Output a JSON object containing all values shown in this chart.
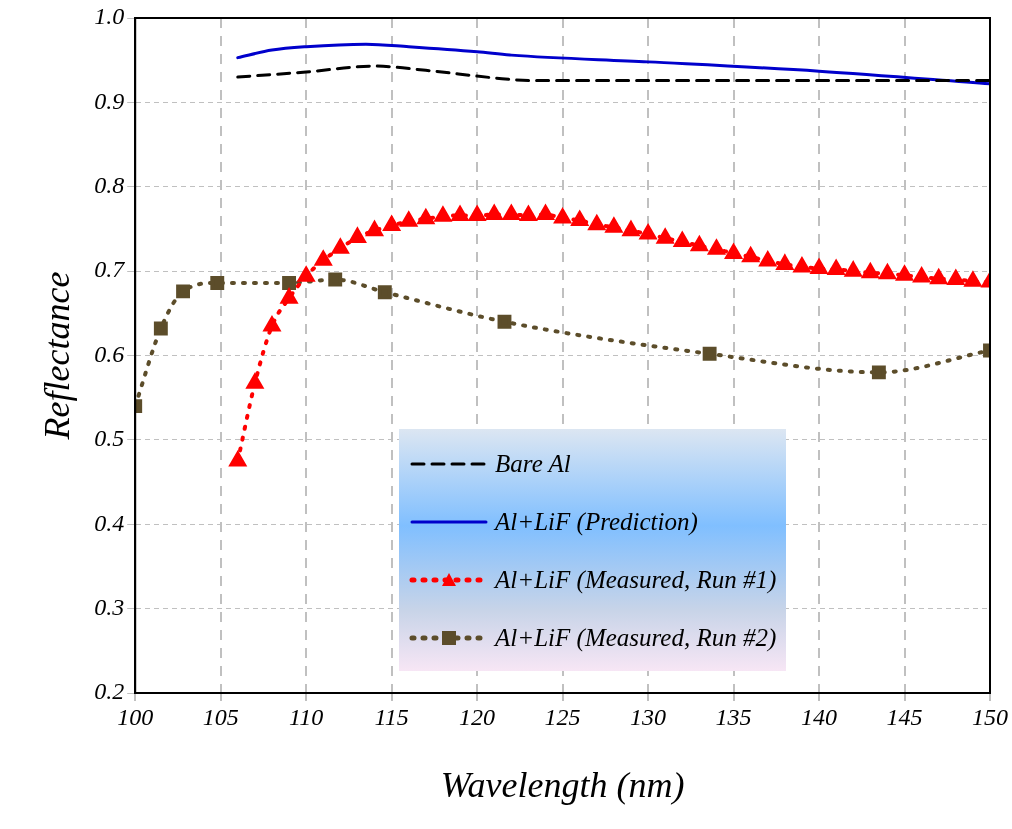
{
  "chart_data": {
    "type": "line",
    "xlabel": "Wavelength (nm)",
    "ylabel": "Reflectance",
    "xlim": [
      100,
      150
    ],
    "xticks": [
      100,
      105,
      110,
      115,
      120,
      125,
      130,
      135,
      140,
      145,
      150
    ],
    "ylim": [
      0.2,
      1.0
    ],
    "yticks": [
      0.2,
      0.3,
      0.4,
      0.5,
      0.6,
      0.7,
      0.8,
      0.9,
      {
        "value": 1.0,
        "label": "1.0"
      }
    ],
    "grid": true,
    "legend": "bottom",
    "series": [
      {
        "name": "Bare Al",
        "color": "#000000",
        "line_style": "dashed",
        "marker": "none",
        "x": [
          106,
          110,
          114,
          117,
          121,
          123,
          130,
          140,
          150
        ],
        "values": [
          0.93,
          0.936,
          0.943,
          0.938,
          0.929,
          0.926,
          0.926,
          0.926,
          0.926
        ]
      },
      {
        "name": "Al+LiF (Prediction)",
        "color": "#0000cc",
        "line_style": "solid",
        "marker": "none",
        "x": [
          106,
          108,
          110,
          113.5,
          116,
          120,
          122,
          130,
          140,
          150
        ],
        "values": [
          0.953,
          0.962,
          0.966,
          0.969,
          0.966,
          0.96,
          0.956,
          0.948,
          0.937,
          0.922
        ]
      },
      {
        "name": "Al+LiF (Measured, Run #1)",
        "color": "#ff0000",
        "line_style": "dotted",
        "marker": "triangle",
        "x": [
          106,
          107,
          108,
          109,
          110,
          111,
          112,
          113,
          114,
          115,
          116,
          117,
          118,
          119,
          120,
          121,
          122,
          123,
          124,
          125,
          126,
          127,
          128,
          129,
          130,
          131,
          132,
          133,
          134,
          135,
          136,
          137,
          138,
          139,
          140,
          141,
          142,
          143,
          144,
          145,
          146,
          147,
          148,
          149,
          150
        ],
        "values": [
          0.475,
          0.567,
          0.635,
          0.668,
          0.694,
          0.713,
          0.727,
          0.74,
          0.748,
          0.754,
          0.759,
          0.762,
          0.765,
          0.766,
          0.766,
          0.767,
          0.767,
          0.766,
          0.767,
          0.763,
          0.76,
          0.755,
          0.752,
          0.748,
          0.744,
          0.739,
          0.735,
          0.73,
          0.726,
          0.721,
          0.717,
          0.712,
          0.708,
          0.705,
          0.703,
          0.702,
          0.7,
          0.698,
          0.697,
          0.695,
          0.693,
          0.691,
          0.69,
          0.688,
          0.687
        ]
      },
      {
        "name": "Al+LiF (Measured, Run #2)",
        "color": "#5c4d2a",
        "line_style": "dotted",
        "marker": "square",
        "x": [
          100,
          101.5,
          102.8,
          104.8,
          109,
          111.7,
          114.6,
          121.6,
          133.6,
          143.5,
          150
        ],
        "values": [
          0.54,
          0.632,
          0.676,
          0.686,
          0.686,
          0.69,
          0.675,
          0.64,
          0.602,
          0.58,
          0.606
        ]
      }
    ]
  }
}
